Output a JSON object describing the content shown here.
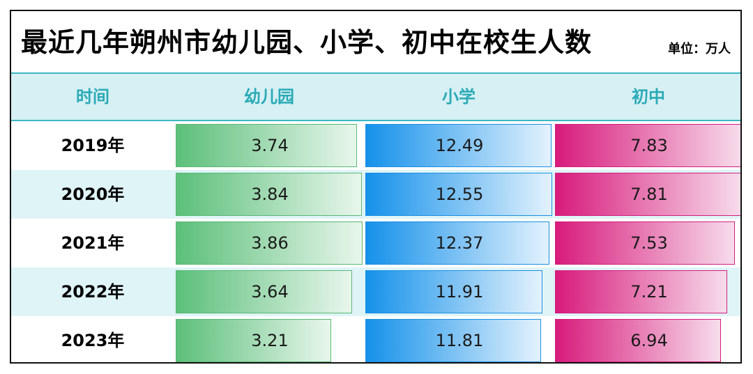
{
  "chart_data": {
    "type": "table",
    "title": "最近几年朔州市幼儿园、小学、初中在校生人数",
    "unit_label": "单位：万人",
    "columns": [
      "时间",
      "幼儿园",
      "小学",
      "初中"
    ],
    "rows": [
      {
        "year": "2019年",
        "values": [
          "3.74",
          "12.49",
          "7.83"
        ]
      },
      {
        "year": "2020年",
        "values": [
          "3.84",
          "12.55",
          "7.81"
        ]
      },
      {
        "year": "2021年",
        "values": [
          "3.86",
          "12.37",
          "7.53"
        ]
      },
      {
        "year": "2022年",
        "values": [
          "3.64",
          "11.91",
          "7.21"
        ]
      },
      {
        "year": "2023年",
        "values": [
          "3.21",
          "11.81",
          "6.94"
        ]
      }
    ],
    "bar_colors": [
      "#5cbf7a",
      "#1591ea",
      "#d81b7c"
    ],
    "header_color": "#2aaab7",
    "header_background": "#d6f0f3",
    "alt_row_background": "#dff4f7"
  }
}
